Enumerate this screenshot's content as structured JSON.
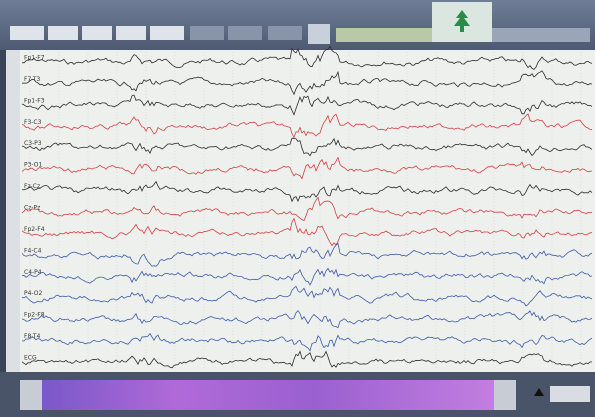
{
  "channels": [
    {
      "label": "Fp1-F7",
      "color": "#2a2a2a"
    },
    {
      "label": "F7-T3",
      "color": "#2a2a2a"
    },
    {
      "label": "Fp1-F3",
      "color": "#2a2a2a"
    },
    {
      "label": "F3-C3",
      "color": "#d04040"
    },
    {
      "label": "C3-P3",
      "color": "#2a2a2a"
    },
    {
      "label": "P3-O1",
      "color": "#d04040"
    },
    {
      "label": "Fz-Cz",
      "color": "#2a2a2a"
    },
    {
      "label": "Cz-Pz",
      "color": "#d04040"
    },
    {
      "label": "Fp2-F4",
      "color": "#d04040"
    },
    {
      "label": "F4-C4",
      "color": "#3a5aa8"
    },
    {
      "label": "C4-P4",
      "color": "#3a5aa8"
    },
    {
      "label": "P4-O2",
      "color": "#3a5aa8"
    },
    {
      "label": "Fp2-F8",
      "color": "#3a5aa8"
    },
    {
      "label": "F8-T4",
      "color": "#3a5aa8"
    },
    {
      "label": "ECG",
      "color": "#2a2a2a"
    }
  ]
}
